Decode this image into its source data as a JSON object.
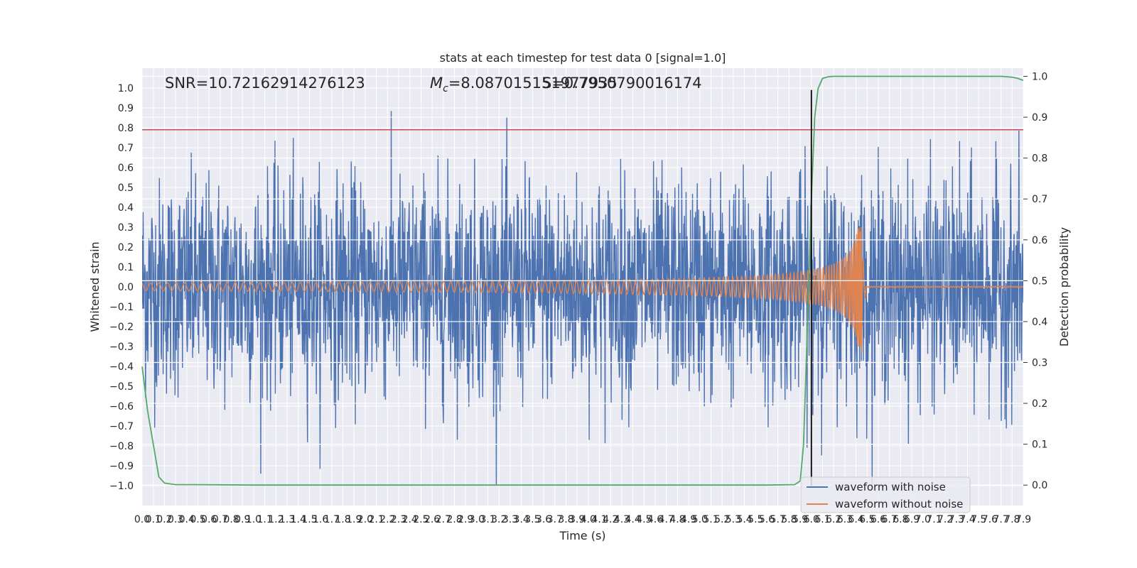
{
  "chart_data": {
    "type": "line",
    "title": "stats at each timestep for test data 0 [signal=1.0]",
    "xlabel": "Time (s)",
    "ylabel": "Whitened strain",
    "ylabel_right": "Detection probability",
    "xlim": [
      0.0,
      7.9
    ],
    "ylim": [
      -1.1,
      1.1
    ],
    "ylim_right": [
      -0.05,
      1.02
    ],
    "x_tick_labels": [
      "0.0",
      "0.1",
      "0.2",
      "0.3",
      "0.4",
      "0.5",
      "0.6",
      "0.7",
      "0.8",
      "0.9",
      "1.0",
      "1.1",
      "1.2",
      "1.3",
      "1.4",
      "1.5",
      "1.6",
      "1.7",
      "1.8",
      "1.9",
      "2.0",
      "2.1",
      "2.2",
      "2.3",
      "2.4",
      "2.5",
      "2.6",
      "2.7",
      "2.8",
      "2.9",
      "3.0",
      "3.1",
      "3.2",
      "3.3",
      "3.4",
      "3.5",
      "3.6",
      "3.7",
      "3.8",
      "3.9",
      "4.0",
      "4.1",
      "4.2",
      "4.3",
      "4.4",
      "4.5",
      "4.6",
      "4.7",
      "4.8",
      "4.9",
      "5.0",
      "5.1",
      "5.2",
      "5.3",
      "5.4",
      "5.5",
      "5.6",
      "5.7",
      "5.8",
      "5.9",
      "6.0",
      "6.1",
      "6.2",
      "6.3",
      "6.4",
      "6.5",
      "6.6",
      "6.7",
      "6.8",
      "6.9",
      "7.0",
      "7.1",
      "7.2",
      "7.3",
      "7.4",
      "7.5",
      "7.6",
      "7.7",
      "7.8",
      "7.9"
    ],
    "y_tick_labels": [
      "1.0",
      "0.9",
      "0.8",
      "0.7",
      "0.6",
      "0.5",
      "0.4",
      "0.3",
      "0.2",
      "0.1",
      "0.0",
      "−0.1",
      "−0.2",
      "−0.3",
      "−0.4",
      "−0.5",
      "−0.6",
      "−0.7",
      "−0.8",
      "−0.9",
      "−1.0"
    ],
    "y_right_tick_labels": [
      "1.0",
      "0.9",
      "0.8",
      "0.7",
      "0.6",
      "0.5",
      "0.4",
      "0.3",
      "0.2",
      "0.1",
      "0.0"
    ],
    "grid": true,
    "legend_position": "bottom-right",
    "annotations": {
      "snr": "SNR=10.72162914276123",
      "mc_symbol": "M",
      "mc_subscript": "c",
      "mc_value": "=8.087015151977935",
      "overlap_text": "S=0.7950790016174"
    },
    "threshold_line": {
      "y": 0.79,
      "color": "#c44e52"
    },
    "merger_vline": {
      "x": 6.0,
      "ymin": -1.0,
      "ymax": 0.99,
      "color": "#000000"
    },
    "series": [
      {
        "name": "waveform with noise",
        "axis": "left",
        "color": "#4c72b0",
        "kind": "noise",
        "x_range": [
          0.0,
          7.9
        ],
        "envelope_max": 0.99,
        "envelope_min": -1.0
      },
      {
        "name": "waveform without noise",
        "axis": "left",
        "color": "#dd8452",
        "kind": "chirp",
        "x_range": [
          0.0,
          7.9
        ],
        "start_amplitude": 0.02,
        "peak_x": 6.45,
        "peak_amplitude": 0.3,
        "trough_amplitude": -0.34
      },
      {
        "name": "",
        "axis": "right",
        "color": "#55a868",
        "x": [
          0.0,
          0.05,
          0.1,
          0.15,
          0.2,
          0.3,
          0.5,
          1.0,
          2.0,
          3.0,
          4.0,
          5.0,
          5.6,
          5.85,
          5.9,
          5.93,
          5.96,
          6.0,
          6.03,
          6.06,
          6.1,
          6.15,
          6.2,
          6.5,
          7.0,
          7.5,
          7.7,
          7.8,
          7.85,
          7.9
        ],
        "y": [
          0.29,
          0.18,
          0.1,
          0.02,
          0.005,
          0.001,
          0.001,
          0.0,
          0.0,
          0.0,
          0.0,
          0.0,
          0.0,
          0.001,
          0.01,
          0.1,
          0.35,
          0.7,
          0.9,
          0.97,
          0.995,
          0.999,
          1.0,
          1.0,
          1.0,
          1.0,
          1.0,
          0.998,
          0.995,
          0.99
        ]
      }
    ]
  }
}
